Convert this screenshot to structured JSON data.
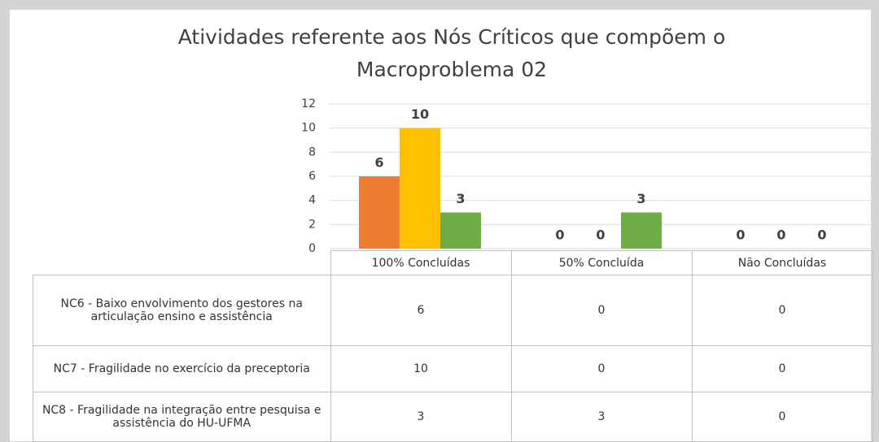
{
  "chart_data": {
    "type": "bar",
    "title": "Atividades referente aos Nós Críticos que compõem o Macroproblema 02",
    "categories": [
      "100% Concluídas",
      "50% Concluída",
      "Não Concluídas"
    ],
    "series": [
      {
        "name": "NC6 - Baixo envolvimento dos gestores na articulação ensino e assistência",
        "color": "#ed7d31",
        "values": [
          6,
          0,
          0
        ]
      },
      {
        "name": "NC7 - Fragilidade no exercício da preceptoria",
        "color": "#ffc000",
        "values": [
          10,
          0,
          0
        ]
      },
      {
        "name": "NC8 - Fragilidade na integração entre pesquisa e assistência do HU-UFMA",
        "color": "#70ad47",
        "values": [
          3,
          3,
          0
        ]
      }
    ],
    "ylim": [
      0,
      12
    ],
    "yticks": [
      0,
      2,
      4,
      6,
      8,
      10,
      12
    ],
    "grid": true
  }
}
